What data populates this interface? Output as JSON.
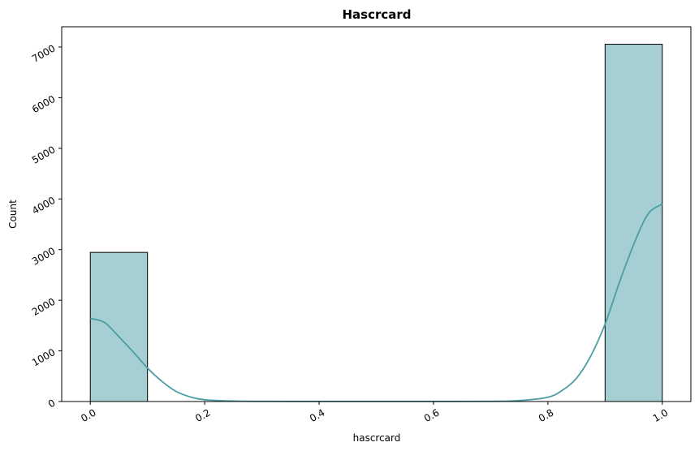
{
  "chart_data": {
    "type": "bar",
    "title": "Hascrcard",
    "xlabel": "hascrcard",
    "ylabel": "Count",
    "xlim": [
      -0.05,
      1.05
    ],
    "ylim": [
      0,
      7400
    ],
    "xticks": [
      0.0,
      0.2,
      0.4,
      0.6,
      0.8,
      1.0
    ],
    "xtick_labels": [
      "0.0",
      "0.2",
      "0.4",
      "0.6",
      "0.8",
      "1.0"
    ],
    "yticks": [
      0,
      1000,
      2000,
      3000,
      4000,
      5000,
      6000,
      7000
    ],
    "ytick_labels": [
      "0",
      "1000",
      "2000",
      "3000",
      "4000",
      "5000",
      "6000",
      "7000"
    ],
    "bins": [
      {
        "x0": 0.0,
        "x1": 0.1,
        "count": 2945
      },
      {
        "x0": 0.1,
        "x1": 0.2,
        "count": 0
      },
      {
        "x0": 0.2,
        "x1": 0.3,
        "count": 0
      },
      {
        "x0": 0.3,
        "x1": 0.4,
        "count": 0
      },
      {
        "x0": 0.4,
        "x1": 0.5,
        "count": 0
      },
      {
        "x0": 0.5,
        "x1": 0.6,
        "count": 0
      },
      {
        "x0": 0.6,
        "x1": 0.7,
        "count": 0
      },
      {
        "x0": 0.7,
        "x1": 0.8,
        "count": 0
      },
      {
        "x0": 0.8,
        "x1": 0.9,
        "count": 0
      },
      {
        "x0": 0.9,
        "x1": 1.0,
        "count": 7055
      }
    ],
    "kde": {
      "x": [
        0.0,
        0.025,
        0.05,
        0.075,
        0.1,
        0.125,
        0.15,
        0.175,
        0.2,
        0.25,
        0.3,
        0.4,
        0.5,
        0.6,
        0.7,
        0.75,
        0.8,
        0.825,
        0.85,
        0.875,
        0.9,
        0.925,
        0.95,
        0.975,
        1.0
      ],
      "y": [
        1640,
        1560,
        1280,
        980,
        660,
        400,
        200,
        90,
        35,
        10,
        4,
        2,
        2,
        2,
        4,
        20,
        85,
        220,
        460,
        900,
        1530,
        2350,
        3100,
        3700,
        3900
      ]
    },
    "bar_color": "#a5cfd2",
    "bar_edge_color": "#000000",
    "kde_color": "#4a9ea3",
    "grid": false,
    "tick_rotation": 30
  }
}
